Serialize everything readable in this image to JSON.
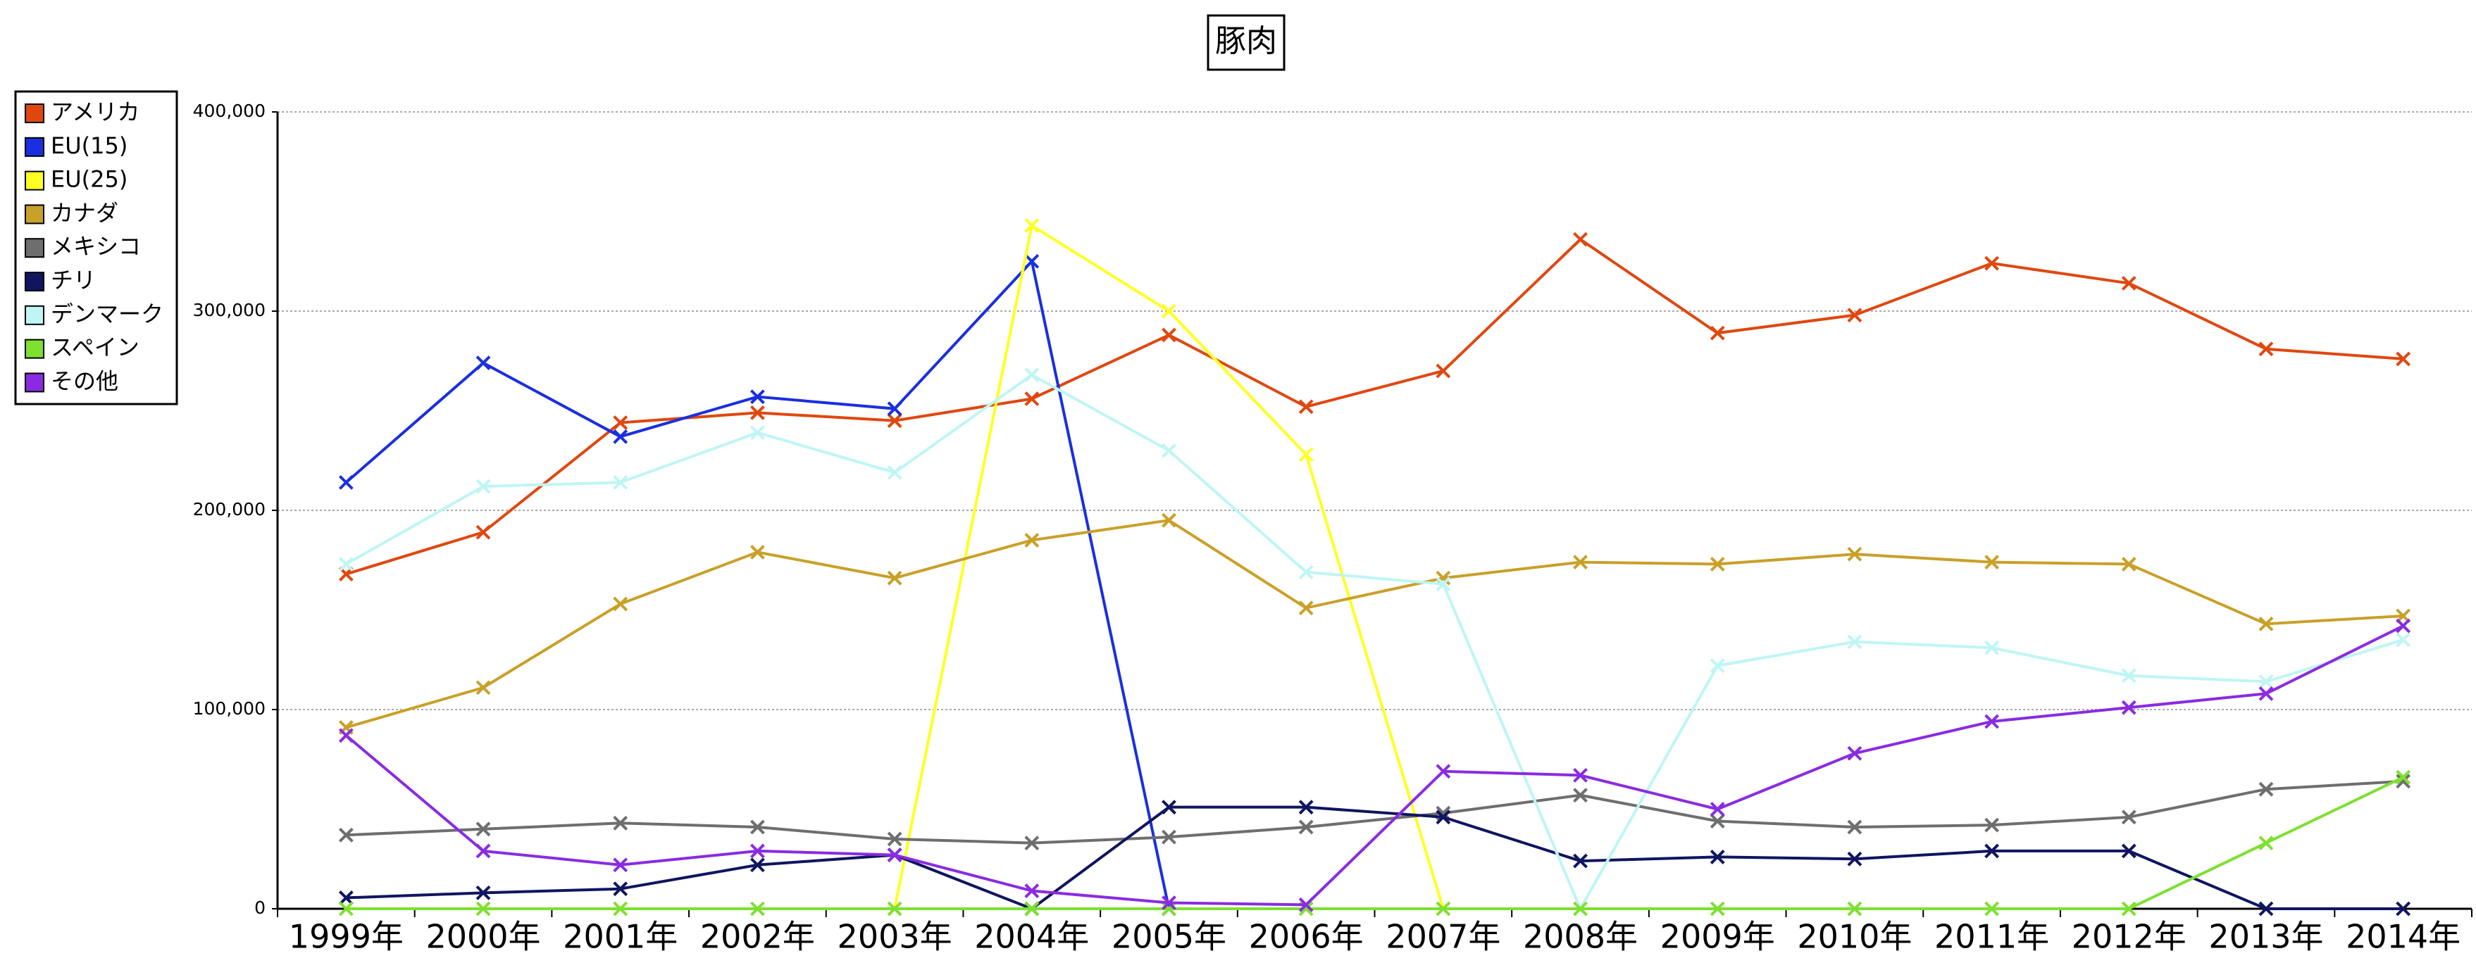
{
  "chart_data": {
    "type": "line",
    "title": "豚肉",
    "categories": [
      "1999年",
      "2000年",
      "2001年",
      "2002年",
      "2003年",
      "2004年",
      "2005年",
      "2006年",
      "2007年",
      "2008年",
      "2009年",
      "2010年",
      "2011年",
      "2012年",
      "2013年",
      "2014年"
    ],
    "series": [
      {
        "name": "アメリカ",
        "color": "#e0470f",
        "values": [
          168000,
          189000,
          244000,
          249000,
          245000,
          256000,
          288000,
          252000,
          270000,
          336000,
          289000,
          298000,
          324000,
          314000,
          281000,
          276000
        ]
      },
      {
        "name": "EU(15)",
        "color": "#1a2fe0",
        "values": [
          214000,
          274000,
          237000,
          257000,
          251000,
          325000,
          0,
          null,
          null,
          null,
          null,
          null,
          null,
          null,
          null,
          null
        ]
      },
      {
        "name": "EU(25)",
        "color": "#ffff22",
        "values": [
          null,
          null,
          null,
          null,
          0,
          343000,
          300000,
          228000,
          0,
          null,
          null,
          null,
          null,
          null,
          null,
          null
        ]
      },
      {
        "name": "カナダ",
        "color": "#c9a028",
        "values": [
          91000,
          111000,
          153000,
          179000,
          166000,
          185000,
          195000,
          151000,
          166000,
          174000,
          173000,
          178000,
          174000,
          173000,
          143000,
          147000
        ]
      },
      {
        "name": "メキシコ",
        "color": "#6e6e6e",
        "values": [
          37000,
          40000,
          43000,
          41000,
          35000,
          33000,
          36000,
          41000,
          48000,
          57000,
          44000,
          41000,
          42000,
          46000,
          60000,
          64000
        ]
      },
      {
        "name": "チリ",
        "color": "#0f1560",
        "values": [
          5500,
          8000,
          10000,
          22000,
          27000,
          0,
          51000,
          51000,
          46000,
          24000,
          26000,
          25000,
          29000,
          29000,
          0,
          0
        ]
      },
      {
        "name": "デンマーク",
        "color": "#bff5f5",
        "values": [
          173000,
          212000,
          214000,
          239000,
          219000,
          268000,
          230000,
          169000,
          163000,
          0,
          122000,
          134000,
          131000,
          117000,
          114000,
          135000
        ]
      },
      {
        "name": "スペイン",
        "color": "#7ee030",
        "values": [
          0,
          0,
          0,
          0,
          0,
          0,
          0,
          0,
          0,
          0,
          0,
          0,
          0,
          0,
          33000,
          66000
        ]
      },
      {
        "name": "その他",
        "color": "#8a2be2",
        "values": [
          87000,
          29000,
          22000,
          29000,
          27000,
          9000,
          3000,
          2000,
          69000,
          67000,
          50000,
          78000,
          94000,
          101000,
          108000,
          142000
        ]
      }
    ],
    "ylim": [
      0,
      400000
    ],
    "yticks": [
      0,
      {
        "value": 100000,
        "label": "100,000"
      },
      {
        "value": 200000,
        "label": "200,000"
      },
      {
        "value": 300000,
        "label": "300,000"
      },
      {
        "value": 400000,
        "label": "400,000"
      }
    ],
    "grid": true,
    "legend": "left"
  }
}
